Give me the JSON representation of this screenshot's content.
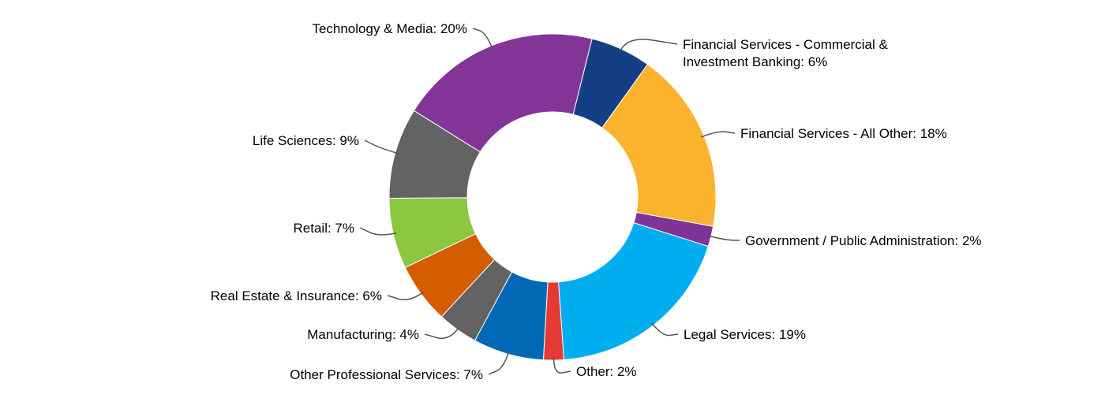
{
  "chart_data": {
    "type": "pie",
    "variant": "donut",
    "title": "",
    "legend": "none",
    "labels_format": "{name}: {value}%",
    "slices": [
      {
        "name": "Financial Services - Commercial & Investment Banking",
        "label_lines": [
          "Financial Services - Commercial &",
          "Investment Banking: 6%"
        ],
        "value": 6,
        "color": "#143f85"
      },
      {
        "name": "Financial Services - All Other",
        "label_lines": [
          "Financial Services - All Other: 18%"
        ],
        "value": 18,
        "color": "#fbb32e"
      },
      {
        "name": "Government / Public Administration",
        "label_lines": [
          "Government / Public Administration: 2%"
        ],
        "value": 2,
        "color": "#7f3396"
      },
      {
        "name": "Legal Services",
        "label_lines": [
          "Legal Services: 19%"
        ],
        "value": 19,
        "color": "#00adef"
      },
      {
        "name": "Other",
        "label_lines": [
          "Other: 2%"
        ],
        "value": 2,
        "color": "#e53935"
      },
      {
        "name": "Other Professional Services",
        "label_lines": [
          "Other Professional Services: 7%"
        ],
        "value": 7,
        "color": "#0068b4"
      },
      {
        "name": "Manufacturing",
        "label_lines": [
          "Manufacturing: 4%"
        ],
        "value": 4,
        "color": "#636363"
      },
      {
        "name": "Real Estate & Insurance",
        "label_lines": [
          "Real Estate & Insurance: 6%"
        ],
        "value": 6,
        "color": "#d45d00"
      },
      {
        "name": "Retail",
        "label_lines": [
          "Retail: 7%"
        ],
        "value": 7,
        "color": "#8dc63f"
      },
      {
        "name": "Life Sciences",
        "label_lines": [
          "Life Sciences: 9%"
        ],
        "value": 9,
        "color": "#636363"
      },
      {
        "name": "Technology & Media",
        "label_lines": [
          "Technology & Media: 20%"
        ],
        "value": 20,
        "color": "#823596"
      }
    ]
  }
}
